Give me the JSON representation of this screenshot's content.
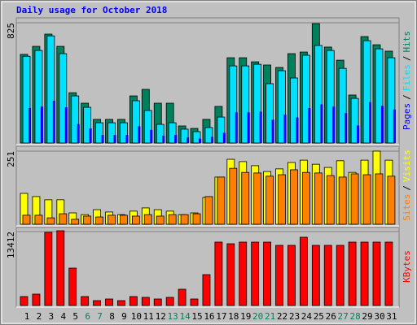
{
  "chart_data": [
    {
      "type": "bar",
      "title": "Daily usage for October 2018",
      "title_color": "#0000ff",
      "categories": [
        "1",
        "2",
        "3",
        "4",
        "5",
        "6",
        "7",
        "8",
        "9",
        "10",
        "11",
        "12",
        "13",
        "14",
        "15",
        "16",
        "17",
        "18",
        "19",
        "20",
        "21",
        "22",
        "23",
        "24",
        "25",
        "26",
        "27",
        "28",
        "29",
        "30",
        "31"
      ],
      "category_label_colors": [
        "#000000",
        "#000000",
        "#000000",
        "#000000",
        "#000000",
        "#00805c",
        "#00805c",
        "#000000",
        "#000000",
        "#000000",
        "#000000",
        "#000000",
        "#00805c",
        "#00805c",
        "#000000",
        "#000000",
        "#000000",
        "#000000",
        "#000000",
        "#00805c",
        "#00805c",
        "#000000",
        "#000000",
        "#000000",
        "#000000",
        "#000000",
        "#00805c",
        "#00805c",
        "#000000",
        "#000000",
        "#000000"
      ],
      "legend_separator": "/",
      "ylim": [
        0,
        825
      ],
      "yticks": [
        825
      ],
      "series": [
        {
          "name": "Hits",
          "color": "#00805c",
          "values": [
            608,
            663,
            747,
            663,
            345,
            273,
            162,
            162,
            162,
            323,
            368,
            273,
            273,
            117,
            100,
            162,
            251,
            585,
            585,
            557,
            535,
            518,
            613,
            624,
            819,
            658,
            568,
            329,
            730,
            674,
            630
          ]
        },
        {
          "name": "Files",
          "color": "#00e0ff",
          "values": [
            595,
            635,
            735,
            613,
            323,
            245,
            139,
            139,
            139,
            290,
            223,
            128,
            139,
            95,
            78,
            106,
            178,
            529,
            529,
            540,
            407,
            496,
            446,
            602,
            669,
            635,
            512,
            306,
            702,
            646,
            585
          ]
        },
        {
          "name": "Pages",
          "color": "#0000ff",
          "values": [
            240,
            250,
            290,
            245,
            130,
            100,
            55,
            55,
            55,
            115,
            90,
            50,
            55,
            38,
            30,
            42,
            70,
            210,
            210,
            215,
            160,
            195,
            175,
            240,
            265,
            250,
            205,
            120,
            280,
            255,
            230
          ]
        }
      ]
    },
    {
      "type": "bar",
      "legend_separator": "/",
      "ylim": [
        0,
        251
      ],
      "yticks": [
        251
      ],
      "series": [
        {
          "name": "Visits",
          "color": "#ffff00",
          "values": [
            106,
            95,
            84,
            84,
            39,
            33,
            50,
            42,
            33,
            45,
            56,
            50,
            45,
            33,
            39,
            92,
            162,
            223,
            215,
            201,
            181,
            190,
            212,
            220,
            206,
            195,
            218,
            178,
            220,
            251,
            220
          ]
        },
        {
          "name": "Sites",
          "color": "#ff8000",
          "values": [
            31,
            31,
            22,
            36,
            17,
            28,
            25,
            31,
            31,
            28,
            33,
            28,
            33,
            33,
            36,
            95,
            162,
            192,
            178,
            176,
            165,
            170,
            187,
            178,
            176,
            167,
            162,
            173,
            170,
            173,
            165
          ]
        }
      ]
    },
    {
      "type": "bar",
      "ylim": [
        0,
        13412
      ],
      "yticks": [
        13412
      ],
      "series": [
        {
          "name": "KBytes",
          "color": "#ff0000",
          "values": [
            1621,
            2063,
            13265,
            13560,
            6780,
            1621,
            884,
            1179,
            884,
            1621,
            1474,
            1179,
            1474,
            2948,
            1179,
            5601,
            11497,
            11202,
            11497,
            11497,
            11497,
            10907,
            10907,
            12382,
            10907,
            10907,
            10907,
            11497,
            11497,
            11497,
            11497
          ]
        }
      ]
    }
  ]
}
